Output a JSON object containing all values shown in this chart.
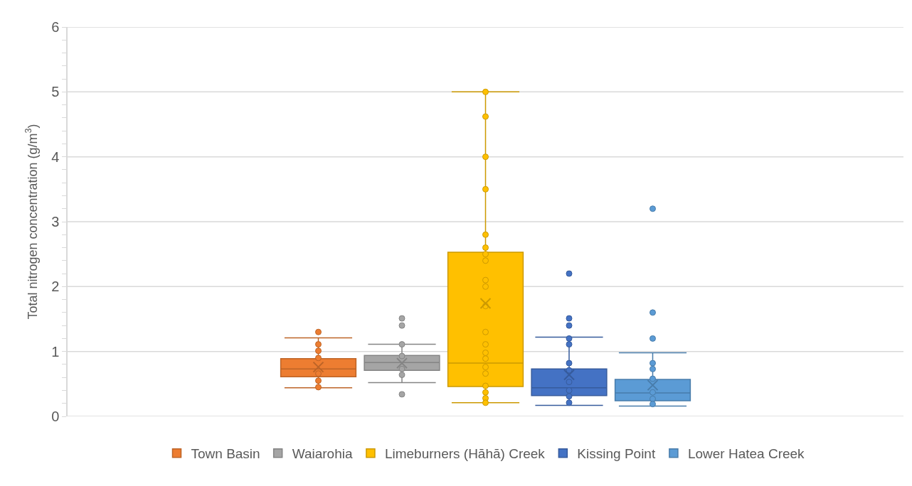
{
  "chart_data": {
    "type": "box",
    "ylabel": "Total nitrogen concentration (g/m$^{3}$)",
    "categories": [
      null
    ],
    "ylim": [
      0,
      6
    ],
    "yticks": [
      0,
      {
        "value": 0.2,
        "label": null
      },
      {
        "value": 0.4,
        "label": null
      },
      {
        "value": 0.6,
        "label": null
      },
      {
        "value": 0.8,
        "label": null
      },
      1,
      {
        "value": 1.2,
        "label": null
      },
      {
        "value": 1.4,
        "label": null
      },
      {
        "value": 1.6,
        "label": null
      },
      {
        "value": 1.8,
        "label": null
      },
      2,
      {
        "value": 2.2,
        "label": null
      },
      {
        "value": 2.4,
        "label": null
      },
      {
        "value": 2.6,
        "label": null
      },
      {
        "value": 2.8,
        "label": null
      },
      3,
      {
        "value": 3.2,
        "label": null
      },
      {
        "value": 3.4,
        "label": null
      },
      {
        "value": 3.6,
        "label": null
      },
      {
        "value": 3.8,
        "label": null
      },
      4,
      {
        "value": 4.2,
        "label": null
      },
      {
        "value": 4.4,
        "label": null
      },
      {
        "value": 4.6,
        "label": null
      },
      {
        "value": 4.8,
        "label": null
      },
      5,
      {
        "value": 5.2,
        "label": null
      },
      {
        "value": 5.4,
        "label": null
      },
      {
        "value": 5.6,
        "label": null
      },
      {
        "value": 5.8,
        "label": null
      },
      6
    ],
    "grid": "y",
    "legend": "bottom",
    "marker": "circle",
    "series": [
      {
        "name": "Town Basin",
        "color": "#ed7d31",
        "boxes": [
          {
            "low": 0.44,
            "q1": 0.61,
            "median": 0.73,
            "q3": 0.89,
            "high": 1.21,
            "mean": 0.76,
            "outliers": [
              1.3,
              1.11,
              1.01,
              0.9,
              0.66,
              0.55,
              0.45
            ]
          }
        ]
      },
      {
        "name": "Waiarohia",
        "color": "#a5a5a5",
        "boxes": [
          {
            "low": 0.52,
            "q1": 0.71,
            "median": 0.83,
            "q3": 0.94,
            "high": 1.11,
            "mean": 0.82,
            "outliers": [
              1.51,
              1.4,
              1.11,
              0.93,
              0.73,
              0.64,
              0.34
            ]
          }
        ]
      },
      {
        "name": "Limeburners (Hāhā) Creek",
        "color": "#ffc000",
        "boxes": [
          {
            "low": 0.21,
            "q1": 0.46,
            "median": 0.82,
            "q3": 2.53,
            "high": 5.0,
            "mean": 1.74,
            "outliers": [
              5.0,
              4.62,
              4.0,
              3.5,
              2.8,
              2.6,
              2.5,
              2.4,
              2.1,
              2.0,
              1.7,
              1.3,
              1.11,
              0.98,
              0.89,
              0.76,
              0.66,
              0.47,
              0.37,
              0.28,
              0.21
            ]
          }
        ]
      },
      {
        "name": "Kissing Point",
        "color": "#4472c4",
        "boxes": [
          {
            "low": 0.17,
            "q1": 0.32,
            "median": 0.44,
            "q3": 0.73,
            "high": 1.22,
            "mean": 0.64,
            "outliers": [
              2.2,
              1.51,
              1.4,
              1.2,
              1.11,
              0.82,
              0.71,
              0.53,
              0.4,
              0.31,
              0.21
            ]
          }
        ]
      },
      {
        "name": "Lower Hatea Creek",
        "color": "#5b9bd5",
        "boxes": [
          {
            "low": 0.16,
            "q1": 0.24,
            "median": 0.36,
            "q3": 0.57,
            "high": 0.98,
            "mean": 0.48,
            "outliers": [
              3.2,
              1.6,
              1.2,
              0.82,
              0.73,
              0.58,
              0.37,
              0.27,
              0.19
            ]
          }
        ]
      }
    ]
  }
}
